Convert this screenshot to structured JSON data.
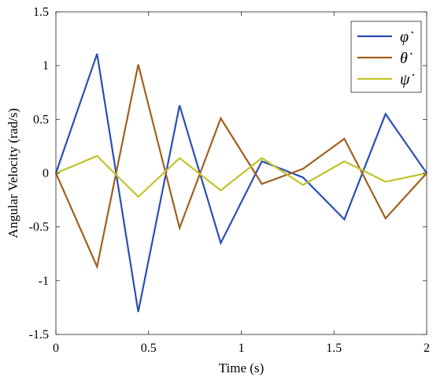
{
  "chart_data": {
    "type": "line",
    "title": "",
    "xlabel": "Time (s)",
    "ylabel": "Angular Velocity (rad/s)",
    "xlim": [
      0,
      2
    ],
    "ylim": [
      -1.5,
      1.5
    ],
    "xticks": [
      0,
      0.5,
      1,
      1.5,
      2
    ],
    "xtick_labels": [
      "0",
      "0.5",
      "1",
      "1.5",
      "2"
    ],
    "yticks": [
      -1.5,
      -1,
      -0.5,
      0,
      0.5,
      1,
      1.5
    ],
    "ytick_labels": [
      "-1.5",
      "-1",
      "-0.5",
      "0",
      "0.5",
      "1",
      "1.5"
    ],
    "grid": false,
    "legend_position": "top-right",
    "x": [
      0,
      0.222,
      0.444,
      0.667,
      0.889,
      1.111,
      1.333,
      1.556,
      1.778,
      2.0
    ],
    "series": [
      {
        "name": "φ̇",
        "color": "#2a4fb4",
        "values": [
          0,
          1.11,
          -1.29,
          0.63,
          -0.65,
          0.11,
          -0.04,
          -0.43,
          0.55,
          0
        ]
      },
      {
        "name": "θ̇",
        "color": "#a0601f",
        "values": [
          0,
          -0.87,
          1.01,
          -0.51,
          0.51,
          -0.1,
          0.04,
          0.32,
          -0.42,
          0
        ]
      },
      {
        "name": "ψ̇",
        "color": "#c3c22a",
        "values": [
          0,
          0.16,
          -0.22,
          0.14,
          -0.16,
          0.14,
          -0.11,
          0.11,
          -0.08,
          0
        ]
      }
    ]
  }
}
